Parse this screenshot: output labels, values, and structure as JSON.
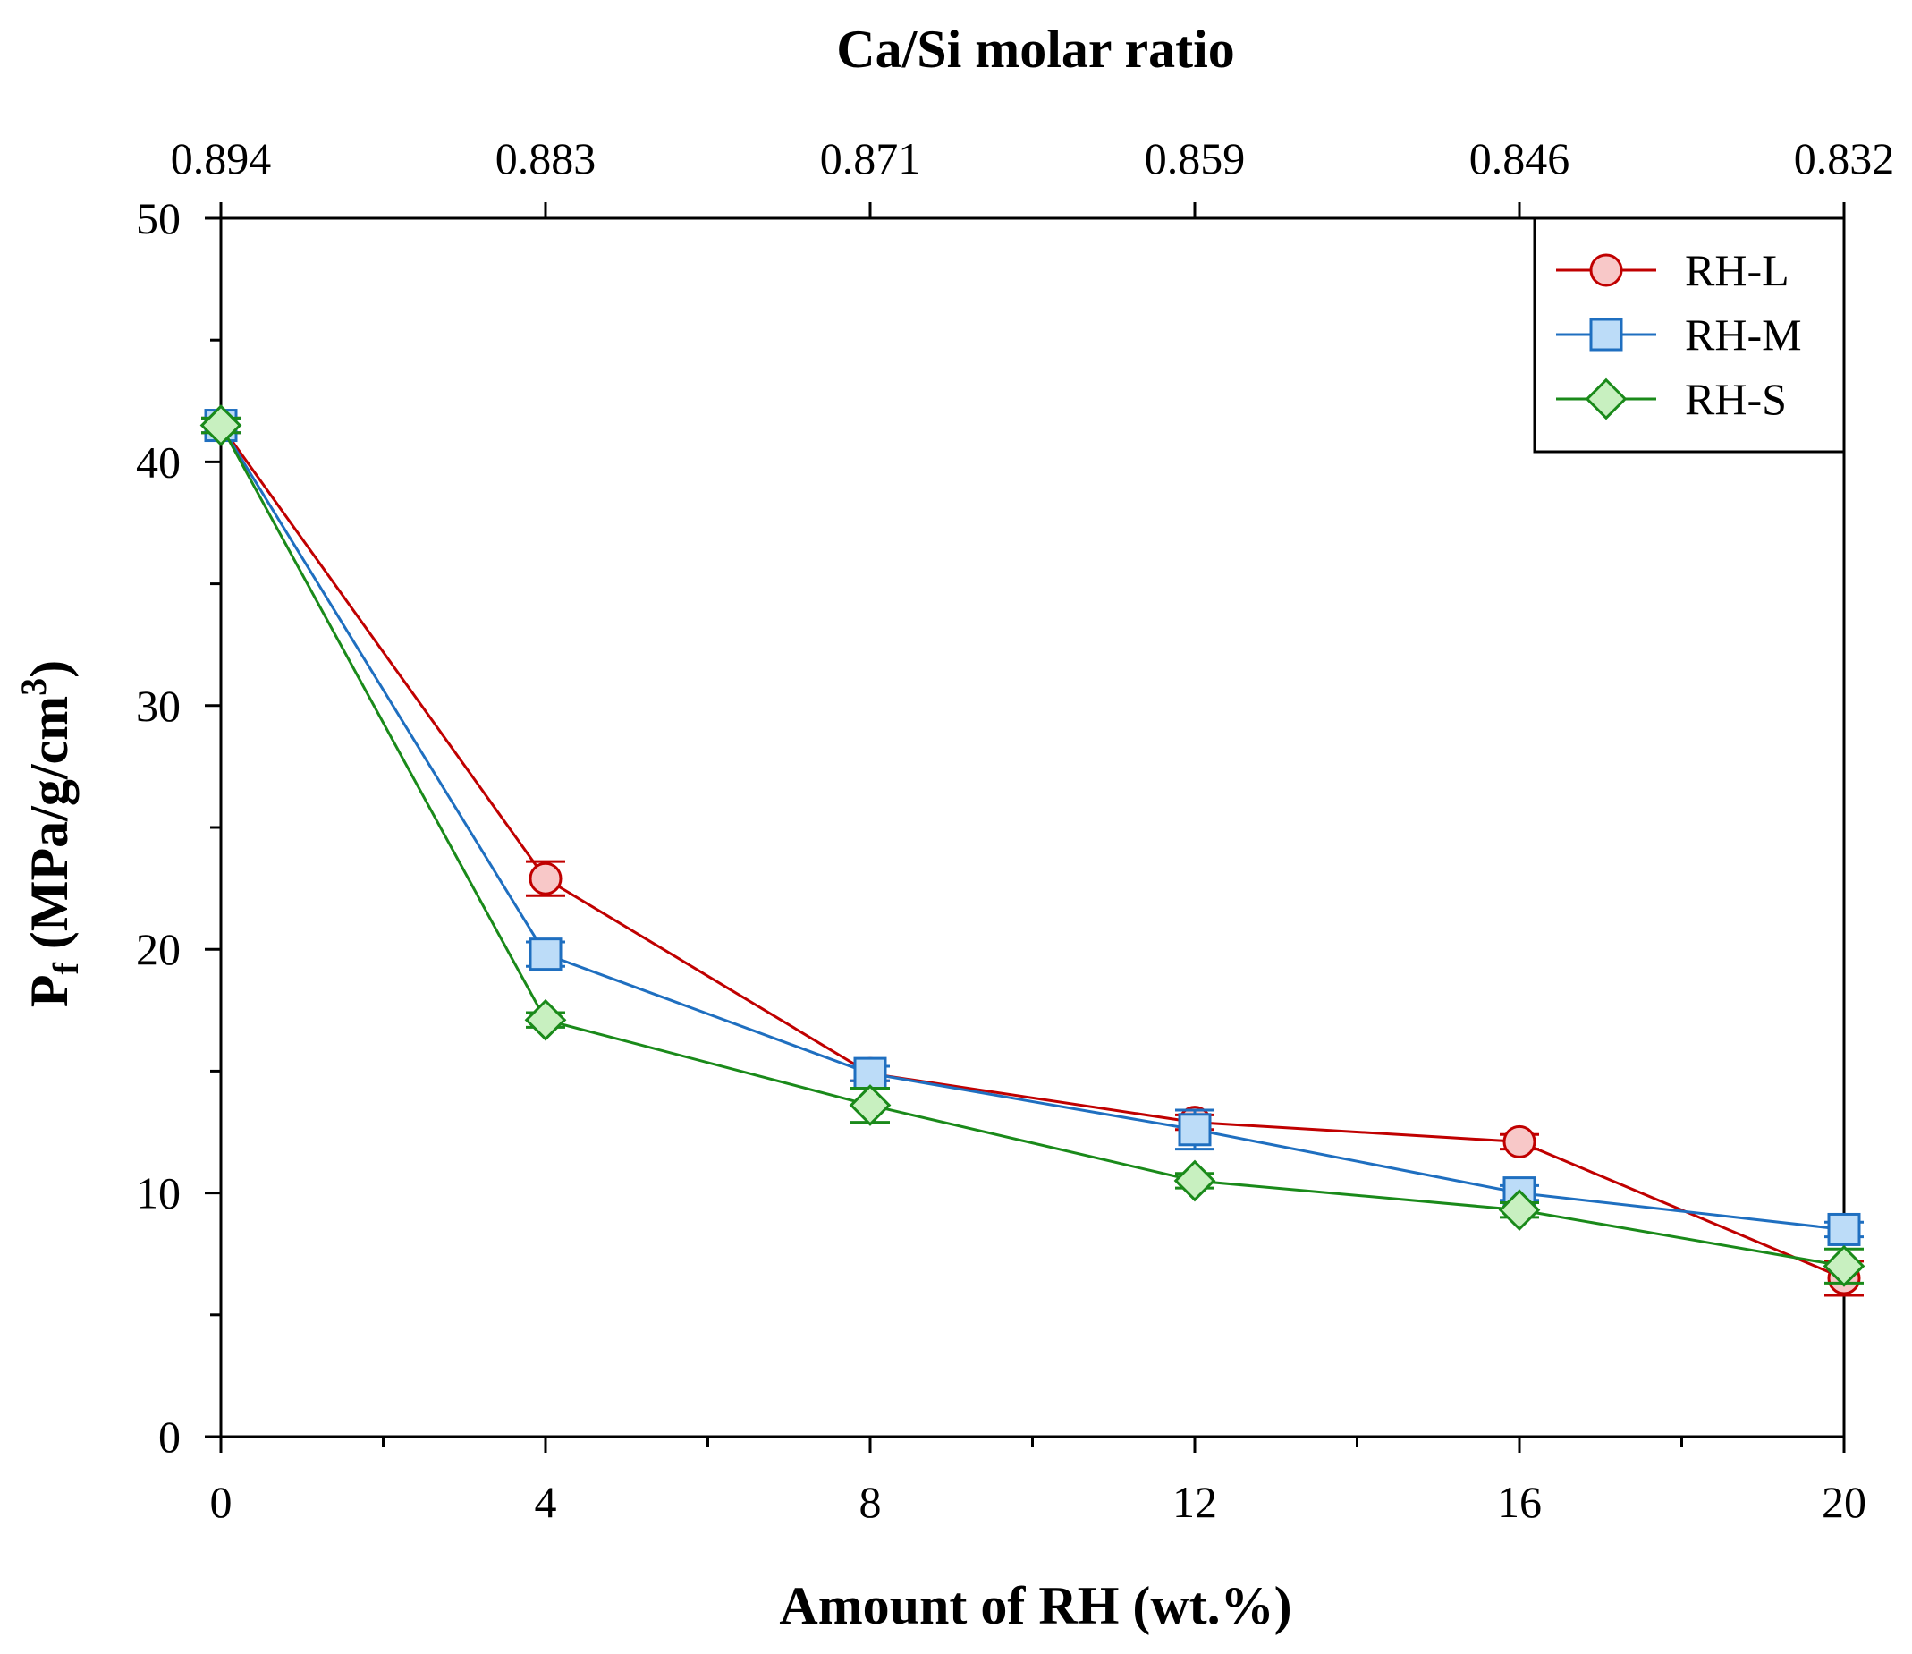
{
  "chart_data": {
    "type": "line",
    "xlabel": "Amount of RH (wt.%)",
    "x2label": "Ca/Si molar ratio",
    "ylabel_main": "P",
    "ylabel_sub": "f",
    "ylabel_rest": " (MPa/g/cm",
    "ylabel_sup": "3",
    "ylabel_close": ")",
    "x": [
      0,
      4,
      8,
      12,
      16,
      20
    ],
    "xlim": [
      0,
      20
    ],
    "ylim": [
      0,
      50
    ],
    "x_ticks": [
      "0",
      "4",
      "8",
      "12",
      "16",
      "20"
    ],
    "y_ticks": [
      "0",
      "10",
      "20",
      "30",
      "40",
      "50"
    ],
    "x2_ticks": [
      "0.894",
      "0.883",
      "0.871",
      "0.859",
      "0.846",
      "0.832"
    ],
    "legend_position": "top-right",
    "grid": false,
    "series": [
      {
        "name": "RH-L",
        "marker": "circle",
        "line_color": "#c00000",
        "fill_color": "#f8c8c8",
        "values": [
          41.5,
          22.9,
          14.9,
          12.9,
          12.1,
          6.5
        ],
        "errors": [
          0.3,
          0.7,
          0.3,
          0.3,
          0.3,
          0.7
        ]
      },
      {
        "name": "RH-M",
        "marker": "square",
        "line_color": "#1f6fc0",
        "fill_color": "#bcdcf8",
        "values": [
          41.5,
          19.8,
          14.9,
          12.6,
          10.0,
          8.5
        ],
        "errors": [
          0.3,
          0.5,
          0.3,
          0.8,
          0.3,
          0.3
        ]
      },
      {
        "name": "RH-S",
        "marker": "diamond",
        "line_color": "#1a8a1a",
        "fill_color": "#c8f0c0",
        "values": [
          41.5,
          17.1,
          13.6,
          10.5,
          9.3,
          7.0
        ],
        "errors": [
          0.3,
          0.3,
          0.7,
          0.3,
          0.3,
          0.7
        ]
      }
    ]
  }
}
